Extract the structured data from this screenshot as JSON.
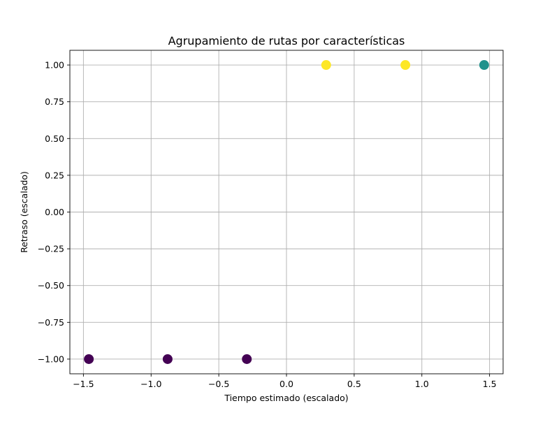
{
  "chart_data": {
    "type": "scatter",
    "title": "Agrupamiento de rutas por características",
    "xlabel": "Tiempo estimado (escalado)",
    "ylabel": "Retraso (escalado)",
    "xlim": [
      -1.6,
      1.6
    ],
    "ylim": [
      -1.1,
      1.1
    ],
    "grid": true,
    "x_ticks": [
      -1.5,
      -1.0,
      -0.5,
      0.0,
      0.5,
      1.0,
      1.5
    ],
    "x_tick_labels": [
      "−1.5",
      "−1.0",
      "−0.5",
      "0.0",
      "0.5",
      "1.0",
      "1.5"
    ],
    "y_ticks": [
      1.0,
      0.75,
      0.5,
      0.25,
      0.0,
      -0.25,
      -0.5,
      -0.75,
      -1.0
    ],
    "y_tick_labels": [
      "1.00",
      "0.75",
      "0.50",
      "0.25",
      "0.00",
      "−0.25",
      "−0.50",
      "−0.75",
      "−1.00"
    ],
    "points": [
      {
        "x": -1.46,
        "y": -1.0,
        "cluster": 0
      },
      {
        "x": -0.878,
        "y": -1.0,
        "cluster": 0
      },
      {
        "x": -0.293,
        "y": -1.0,
        "cluster": 0
      },
      {
        "x": 0.293,
        "y": 1.0,
        "cluster": 2
      },
      {
        "x": 0.878,
        "y": 1.0,
        "cluster": 2
      },
      {
        "x": 1.46,
        "y": 1.0,
        "cluster": 1
      }
    ],
    "cluster_colors": {
      "0": "#440154",
      "1": "#21918c",
      "2": "#fde725"
    }
  }
}
